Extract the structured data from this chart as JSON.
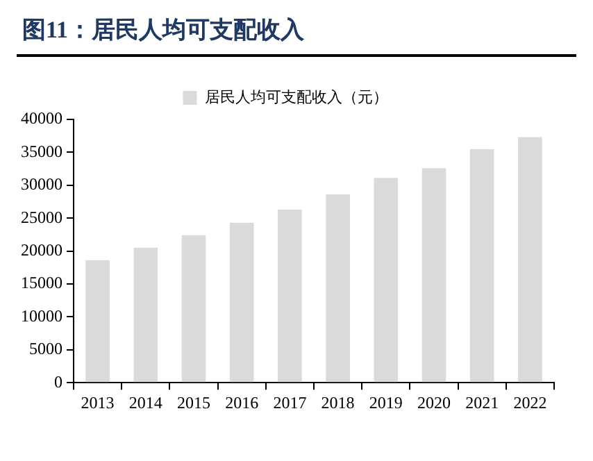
{
  "chart_data": {
    "type": "bar",
    "title": "图11：居民人均可支配收入",
    "categories": [
      "2013",
      "2014",
      "2015",
      "2016",
      "2017",
      "2018",
      "2019",
      "2020",
      "2021",
      "2022"
    ],
    "series": [
      {
        "name": "居民人均可支配收入（元）",
        "color": "#dadada",
        "values": [
          18600,
          20500,
          22400,
          24300,
          26300,
          28600,
          31100,
          32600,
          35500,
          37300
        ]
      }
    ],
    "ylim": [
      0,
      40000
    ],
    "yticks": [
      0,
      5000,
      10000,
      15000,
      20000,
      25000,
      30000,
      35000,
      40000
    ],
    "grid": false,
    "legend": "top"
  }
}
